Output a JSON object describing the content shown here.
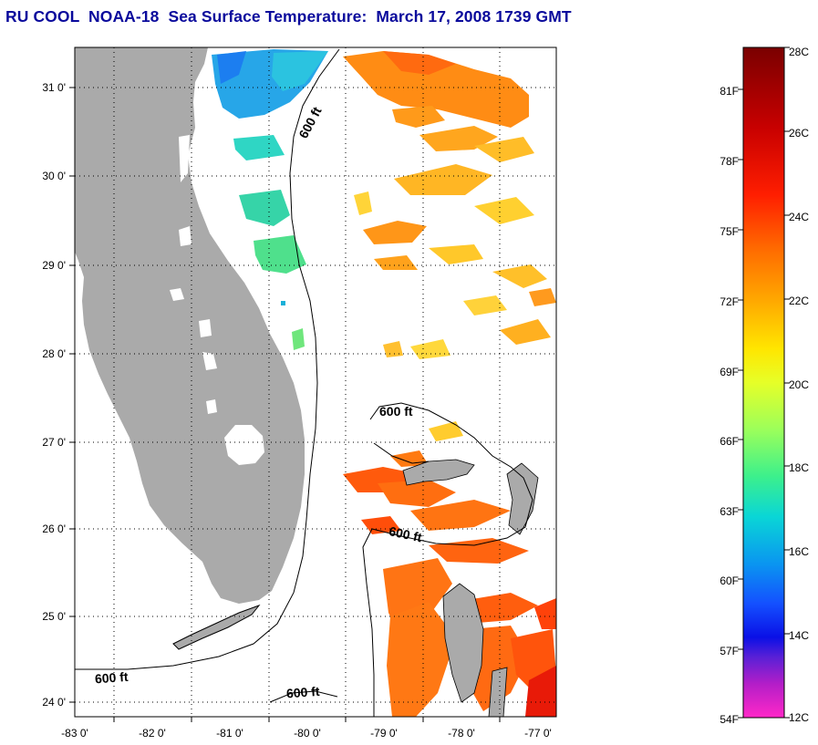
{
  "title": "RU COOL  NOAA-18  Sea Surface Temperature:  March 17, 2008 1739 GMT",
  "map": {
    "lat_ticks": [
      "31 0'",
      "30 0'",
      "29 0'",
      "28 0'",
      "27 0'",
      "26 0'",
      "25 0'",
      "24 0'"
    ],
    "lon_ticks": [
      "-83 0'",
      "-82 0'",
      "-81 0'",
      "-80 0'",
      "-79 0'",
      "-78 0'",
      "-77 0'"
    ],
    "contour_labels": [
      "600 ft",
      "600 ft",
      "600 ft",
      "600 ft",
      "600 ft"
    ],
    "colors": {
      "land": "#aaaaaa",
      "grid": "#000000",
      "cloud": "#ffffff"
    }
  },
  "colorbar": {
    "celsius_labels": [
      "28C",
      "26C",
      "24C",
      "22C",
      "20C",
      "18C",
      "16C",
      "14C",
      "12C"
    ],
    "fahrenheit_labels": [
      "81F",
      "78F",
      "75F",
      "72F",
      "69F",
      "66F",
      "63F",
      "60F",
      "57F",
      "54F"
    ],
    "stops": [
      "#7a0000",
      "#c80000",
      "#ff1e00",
      "#ff6a00",
      "#ffaa00",
      "#ffe600",
      "#e6ff28",
      "#9cff5a",
      "#3cf08c",
      "#0ad6d6",
      "#0a96f0",
      "#1450ff",
      "#0a10e6",
      "#5a20d6",
      "#b41ec8",
      "#ff28c8"
    ]
  }
}
